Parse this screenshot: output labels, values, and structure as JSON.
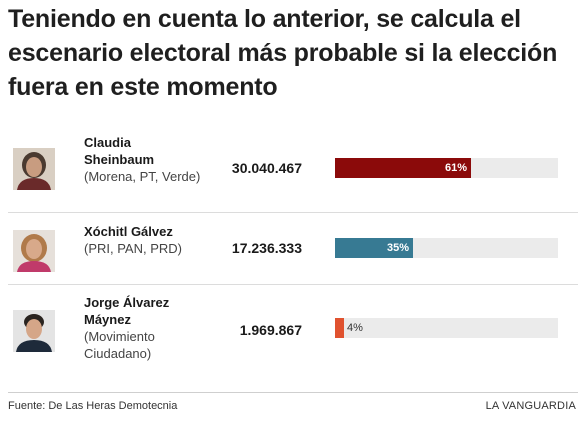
{
  "title": "Teniendo en cuenta lo anterior, se calcula el escenario electoral más probable si la elección fuera en este momento",
  "chart_data": {
    "type": "bar",
    "orientation": "horizontal",
    "categories": [
      "Claudia Sheinbaum",
      "Xóchitl Gálvez",
      "Jorge Álvarez Máynez"
    ],
    "values": [
      61,
      35,
      4
    ],
    "value_unit": "%",
    "xlim": [
      0,
      100
    ],
    "votes": [
      30040467,
      17236333,
      1969867
    ],
    "grid": false
  },
  "rows": [
    {
      "name": "Claudia Sheinbaum",
      "party": "(Morena, PT, Verde)",
      "votes": "30.040.467",
      "pct_label": "61%",
      "color": "#8b0a0a",
      "avatar_bg": "#d9cfc3",
      "avatar_skin": "#c89c80",
      "avatar_hair": "#4a3a30",
      "avatar_cloth": "#6a2a2a"
    },
    {
      "name": "Xóchitl Gálvez",
      "party": "(PRI, PAN, PRD)",
      "votes": "17.236.333",
      "pct_label": "35%",
      "color": "#377a93",
      "avatar_bg": "#e6e0da",
      "avatar_skin": "#d8a98a",
      "avatar_hair": "#b07a4a",
      "avatar_cloth": "#c03a6a"
    },
    {
      "name": "Jorge Álvarez Máynez",
      "party": "(Movimiento Ciudadano)",
      "votes": "1.969.867",
      "pct_label": "4%",
      "color": "#e0522f",
      "avatar_bg": "#e4e4e4",
      "avatar_skin": "#d5a688",
      "avatar_hair": "#2a2420",
      "avatar_cloth": "#1e2a3a"
    }
  ],
  "footer": {
    "source": "Fuente: De Las Heras Demotecnia",
    "brand": "LA VANGUARDIA"
  }
}
